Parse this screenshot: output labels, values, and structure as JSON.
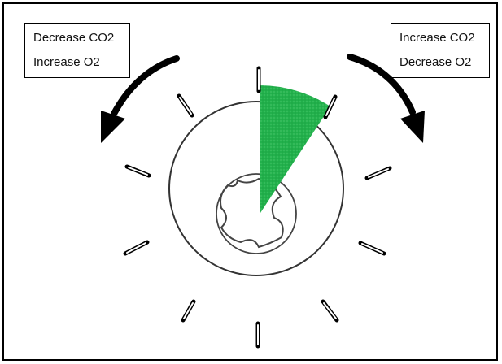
{
  "labels": {
    "left": {
      "line1": "Decrease CO2",
      "line2": "Increase O2"
    },
    "right": {
      "line1": "Increase CO2",
      "line2": "Decrease O2"
    }
  },
  "colors": {
    "wedge": "#22b14c",
    "stroke": "#000000",
    "background": "#ffffff"
  },
  "icons": {
    "left_arrow": "curved-arrow-counterclockwise-icon",
    "right_arrow": "curved-arrow-clockwise-icon"
  }
}
